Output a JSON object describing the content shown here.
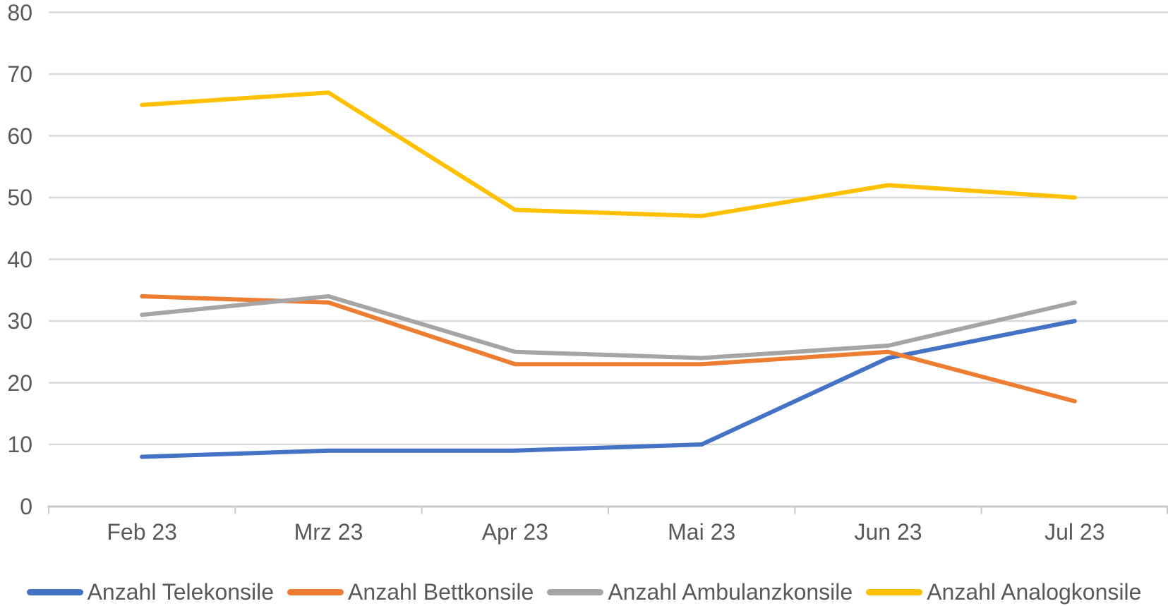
{
  "chart_data": {
    "type": "line",
    "categories": [
      "Feb 23",
      "Mrz 23",
      "Apr 23",
      "Mai 23",
      "Jun 23",
      "Jul 23"
    ],
    "series": [
      {
        "name": "Anzahl Telekonsile",
        "color": "#4472C4",
        "values": [
          8,
          9,
          9,
          10,
          24,
          30
        ]
      },
      {
        "name": "Anzahl Bettkonsile",
        "color": "#ED7D31",
        "values": [
          34,
          33,
          23,
          23,
          25,
          17
        ]
      },
      {
        "name": "Anzahl Ambulanzkonsile",
        "color": "#A5A5A5",
        "values": [
          31,
          34,
          25,
          24,
          26,
          33
        ]
      },
      {
        "name": "Anzahl Analogkonsile",
        "color": "#FFC000",
        "values": [
          65,
          67,
          48,
          47,
          52,
          50
        ]
      }
    ],
    "yticks": [
      0,
      10,
      20,
      30,
      40,
      50,
      60,
      70,
      80
    ],
    "ylim": [
      0,
      80
    ],
    "grid": true,
    "legend_position": "bottom"
  },
  "colors": {
    "background": "#FFFFFF",
    "gridline": "#D9D9D9",
    "axis": "#C9C9C9",
    "tick_text": "#595959"
  }
}
